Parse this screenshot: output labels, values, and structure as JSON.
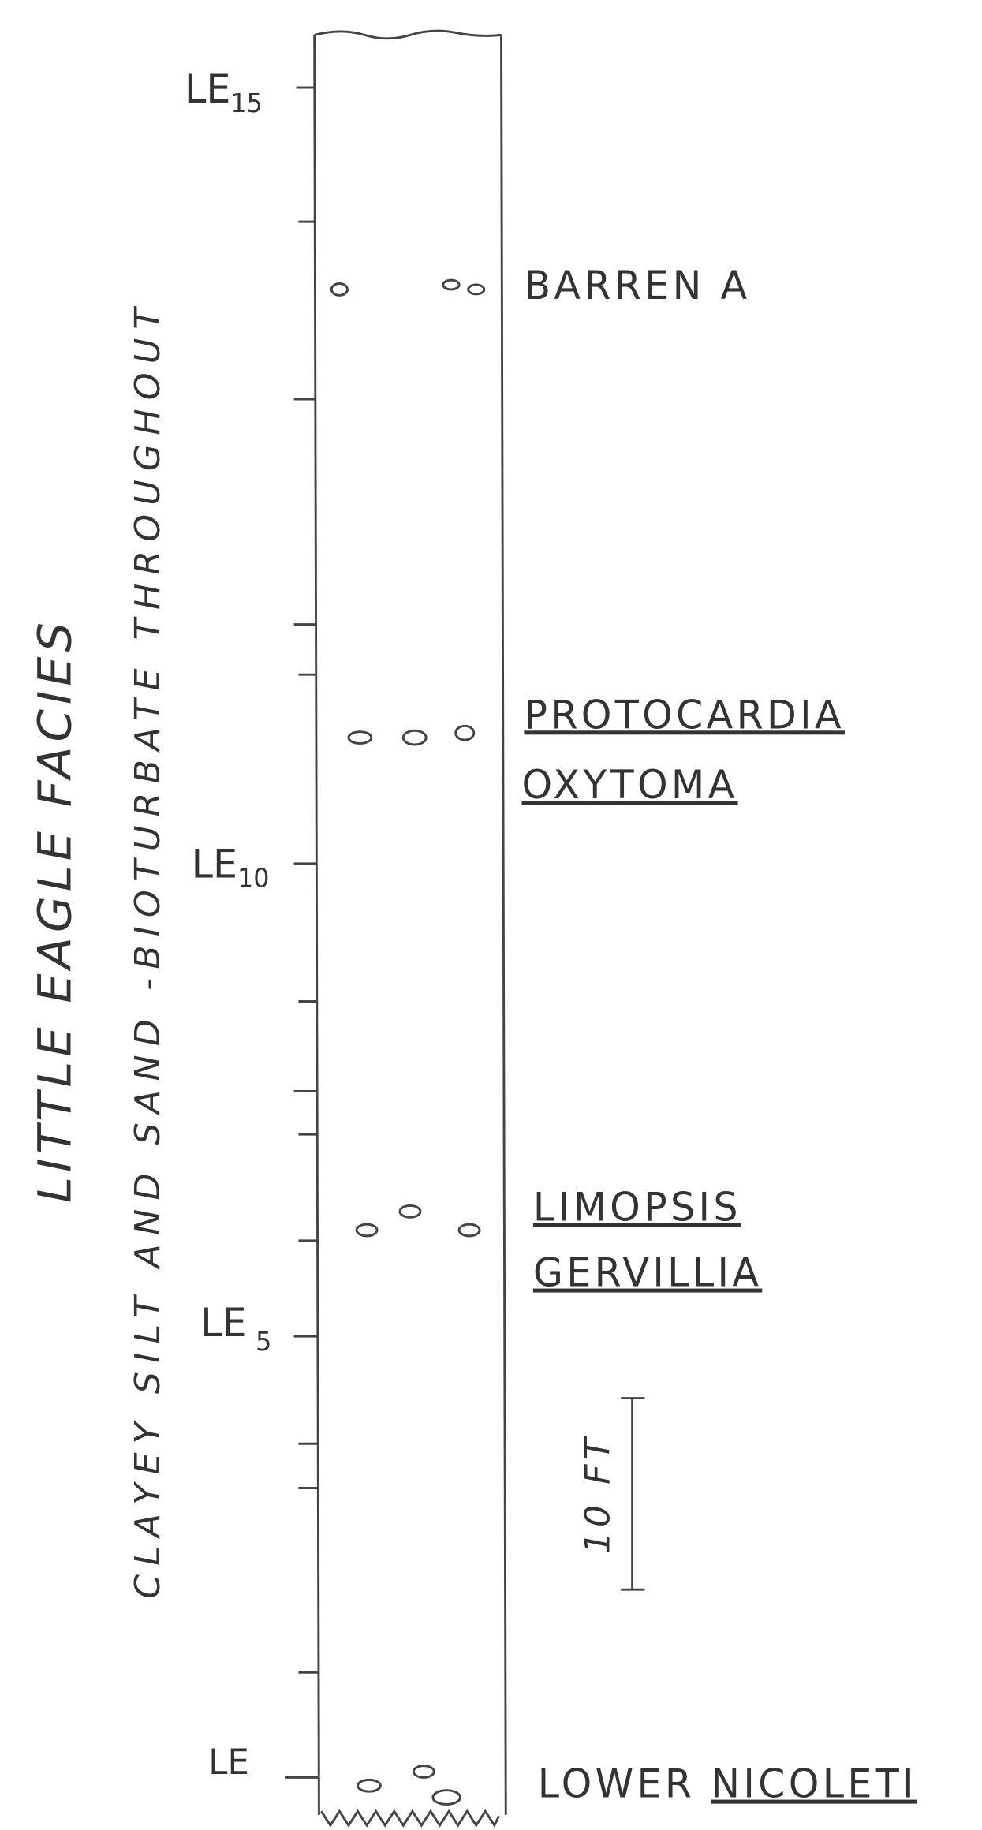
{
  "title": "LITTLE EAGLE FACIES",
  "description": "CLAYEY SILT AND SAND -BIOTURBATE THROUGHOUT",
  "levels": [
    {
      "label": "LE",
      "subscript": "15"
    },
    {
      "label": "LE",
      "subscript": "10"
    },
    {
      "label": "LE",
      "subscript": "5"
    },
    {
      "label": "LE"
    }
  ],
  "fossil_beds": {
    "barren": "BARREN A",
    "upper": [
      "PROTOCARDIA",
      "OXYTOMA"
    ],
    "middle": [
      "LIMOPSIS",
      "GERVILLIA"
    ],
    "base": {
      "prefix": "LOWER",
      "name": "NICOLETI"
    }
  },
  "scale_bar": "10 FT"
}
